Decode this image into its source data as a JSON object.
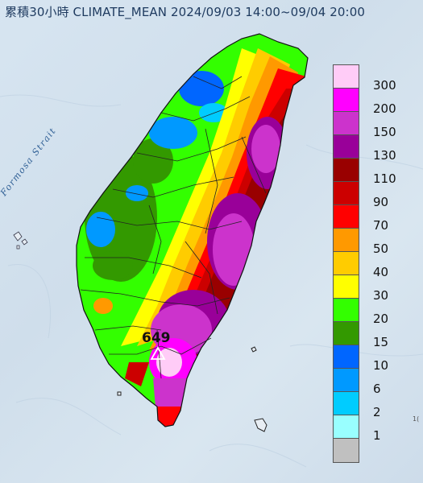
{
  "title": "累積30小時 CLIMATE_MEAN 2024/09/03 14:00~09/04 20:00",
  "map": {
    "strait_label": "Formosa Strait",
    "max_station_value": "649",
    "max_station_icon": "triangle-marker-icon",
    "edge_label": "1("
  },
  "legend": {
    "unit_values": [
      {
        "label": "300",
        "color": "#ffccf7"
      },
      {
        "label": "200",
        "color": "#ff00ff"
      },
      {
        "label": "150",
        "color": "#cc33cc"
      },
      {
        "label": "130",
        "color": "#990099"
      },
      {
        "label": "110",
        "color": "#990000"
      },
      {
        "label": "90",
        "color": "#cc0000"
      },
      {
        "label": "70",
        "color": "#ff0000"
      },
      {
        "label": "50",
        "color": "#ff9900"
      },
      {
        "label": "40",
        "color": "#ffcc00"
      },
      {
        "label": "30",
        "color": "#ffff00"
      },
      {
        "label": "20",
        "color": "#33ff00"
      },
      {
        "label": "15",
        "color": "#339900"
      },
      {
        "label": "10",
        "color": "#0066ff"
      },
      {
        "label": "6",
        "color": "#0099ff"
      },
      {
        "label": "2",
        "color": "#00ccff"
      },
      {
        "label": "1",
        "color": "#99ffff"
      },
      {
        "label": "",
        "color": "#c0c0c0"
      }
    ]
  }
}
